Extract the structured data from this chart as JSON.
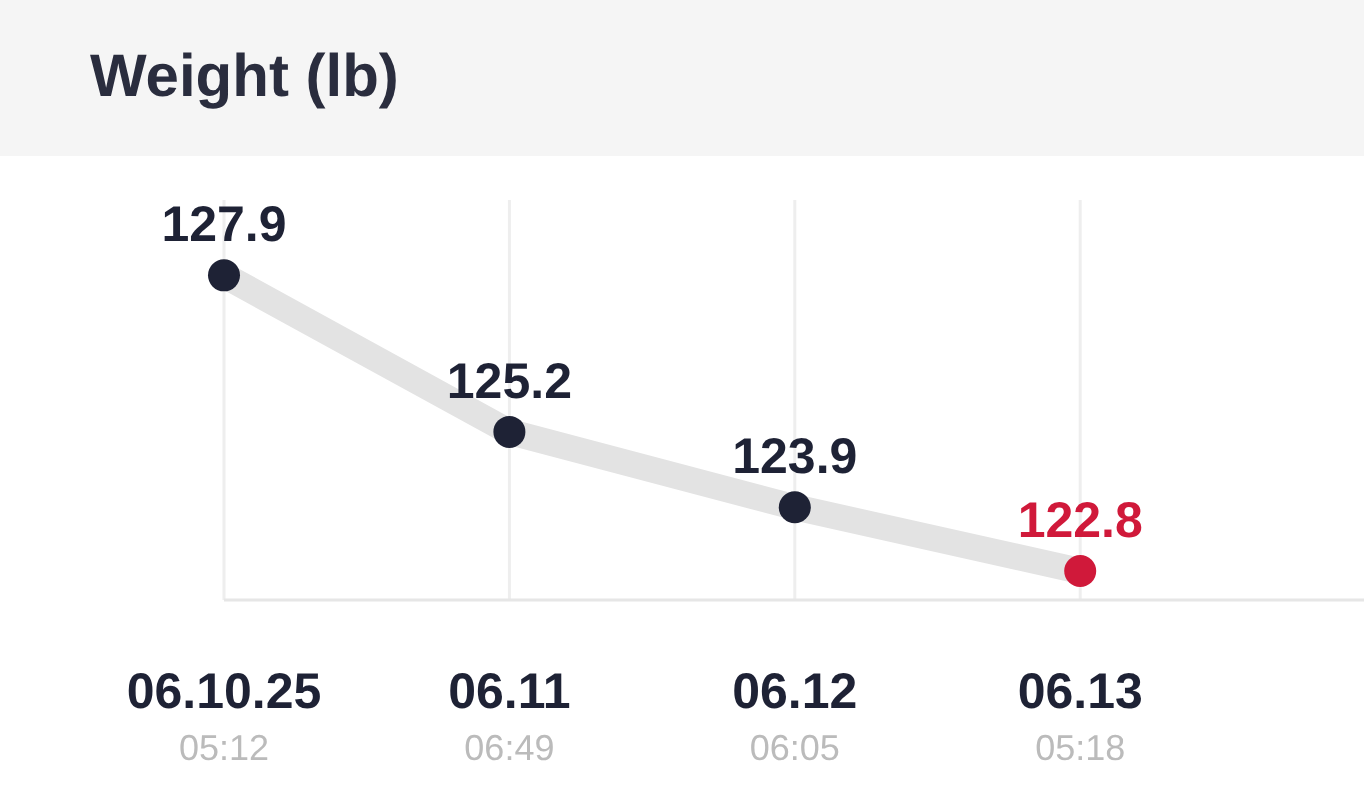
{
  "chart_data": {
    "type": "line",
    "title": "Weight (lb)",
    "categories": [
      "06.10.25\n05:12",
      "06.11\n06:49",
      "06.12\n06:05",
      "06.13\n05:18"
    ],
    "series": [
      {
        "color": "#e3e3e3",
        "colors": [
          "#1e2235",
          "#1e2235",
          "#1e2235",
          "#d0193a"
        ],
        "values": [
          127.9,
          125.2,
          123.9,
          122.8
        ]
      }
    ],
    "ylim": [
      122.3,
      129.2
    ],
    "tick_labels": "x",
    "grid": "x",
    "marker": "circle",
    "data_labels": true
  }
}
